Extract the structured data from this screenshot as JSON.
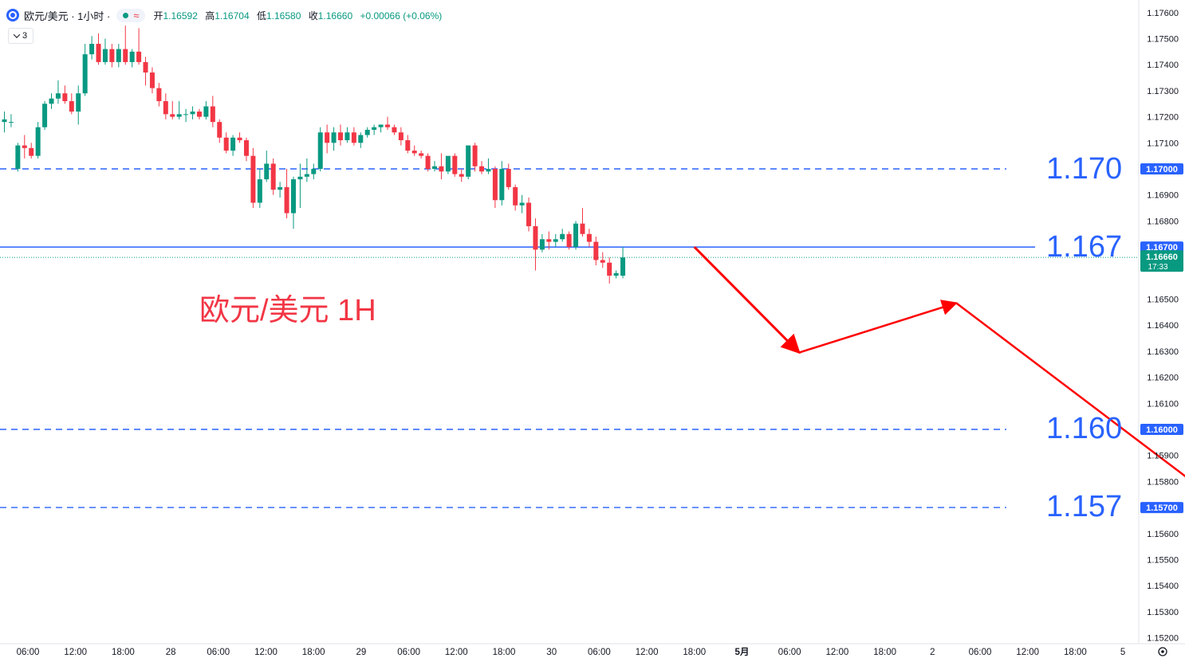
{
  "header": {
    "symbol_title": "欧元/美元 · 1小时 ·",
    "wave_symbol": "≈",
    "ohlc": [
      {
        "label": "开",
        "value": "1.16592"
      },
      {
        "label": "高",
        "value": "1.16704"
      },
      {
        "label": "低",
        "value": "1.16580"
      },
      {
        "label": "收",
        "value": "1.16660"
      },
      {
        "label": "",
        "value": "+0.00066 (+0.06%)"
      }
    ],
    "collapse_count": "3"
  },
  "colors": {
    "up": "#089981",
    "down": "#f23645",
    "level_line": "#2962ff",
    "current_line": "#2962ff",
    "price_tag": "#2962ff",
    "arrow": "#ff0000",
    "title": "#f23645"
  },
  "chart_data": {
    "type": "candlestick",
    "title": "欧元/美元 1H",
    "ylim": [
      1.152,
      1.1762
    ],
    "y_ticks": [
      "1.17600",
      "1.17500",
      "1.17400",
      "1.17300",
      "1.17200",
      "1.17100",
      "1.16900",
      "1.16800",
      "1.16500",
      "1.16400",
      "1.16300",
      "1.16200",
      "1.16100",
      "1.15900",
      "1.15800",
      "1.15600",
      "1.15500",
      "1.15400",
      "1.15300",
      "1.15200"
    ],
    "x_ticks": [
      "06:00",
      "12:00",
      "18:00",
      "28",
      "06:00",
      "12:00",
      "18:00",
      "29",
      "06:00",
      "12:00",
      "18:00",
      "30",
      "06:00",
      "12:00",
      "18:00",
      "5月",
      "06:00",
      "12:00",
      "18:00",
      "2",
      "06:00",
      "12:00",
      "18:00",
      "5"
    ],
    "levels": [
      {
        "value": 1.17,
        "label": "1.170",
        "tag": "1.17000",
        "style": "dashed"
      },
      {
        "value": 1.167,
        "label": "1.167",
        "tag": "1.16700",
        "style": "solid"
      },
      {
        "value": 1.16,
        "label": "1.160",
        "tag": "1.16000",
        "style": "dashed"
      },
      {
        "value": 1.157,
        "label": "1.157",
        "tag": "1.15700",
        "style": "dashed"
      }
    ],
    "current_price": {
      "value": 1.1666,
      "tag": "1.16660",
      "countdown": "17:33"
    },
    "candles": [
      {
        "o": 1.1718,
        "h": 1.1722,
        "l": 1.1714,
        "c": 1.1719
      },
      {
        "o": 1.1718,
        "h": 1.1721,
        "l": 1.1716,
        "c": 1.1718
      },
      {
        "o": 1.17,
        "h": 1.171,
        "l": 1.1699,
        "c": 1.1709
      },
      {
        "o": 1.1709,
        "h": 1.1713,
        "l": 1.1704,
        "c": 1.1708
      },
      {
        "o": 1.1708,
        "h": 1.171,
        "l": 1.1704,
        "c": 1.1705
      },
      {
        "o": 1.1705,
        "h": 1.1718,
        "l": 1.1704,
        "c": 1.1716
      },
      {
        "o": 1.1716,
        "h": 1.1726,
        "l": 1.1715,
        "c": 1.1725
      },
      {
        "o": 1.1725,
        "h": 1.1729,
        "l": 1.1723,
        "c": 1.1727
      },
      {
        "o": 1.1727,
        "h": 1.1734,
        "l": 1.1725,
        "c": 1.1729
      },
      {
        "o": 1.1729,
        "h": 1.1732,
        "l": 1.1725,
        "c": 1.1726
      },
      {
        "o": 1.1726,
        "h": 1.1729,
        "l": 1.1721,
        "c": 1.1722
      },
      {
        "o": 1.1722,
        "h": 1.1732,
        "l": 1.1717,
        "c": 1.1729
      },
      {
        "o": 1.1729,
        "h": 1.1748,
        "l": 1.1728,
        "c": 1.1744
      },
      {
        "o": 1.1744,
        "h": 1.1751,
        "l": 1.1742,
        "c": 1.1748
      },
      {
        "o": 1.1748,
        "h": 1.1752,
        "l": 1.174,
        "c": 1.1741
      },
      {
        "o": 1.1741,
        "h": 1.175,
        "l": 1.174,
        "c": 1.1746
      },
      {
        "o": 1.1746,
        "h": 1.1748,
        "l": 1.1739,
        "c": 1.1741
      },
      {
        "o": 1.1741,
        "h": 1.1748,
        "l": 1.1739,
        "c": 1.1746
      },
      {
        "o": 1.1746,
        "h": 1.1755,
        "l": 1.174,
        "c": 1.1741
      },
      {
        "o": 1.1741,
        "h": 1.1746,
        "l": 1.1739,
        "c": 1.1745
      },
      {
        "o": 1.1745,
        "h": 1.1754,
        "l": 1.174,
        "c": 1.1741
      },
      {
        "o": 1.1741,
        "h": 1.1743,
        "l": 1.1732,
        "c": 1.1737
      },
      {
        "o": 1.1737,
        "h": 1.1739,
        "l": 1.1729,
        "c": 1.1731
      },
      {
        "o": 1.1731,
        "h": 1.1733,
        "l": 1.1724,
        "c": 1.1726
      },
      {
        "o": 1.1726,
        "h": 1.1729,
        "l": 1.1719,
        "c": 1.1721
      },
      {
        "o": 1.1721,
        "h": 1.1726,
        "l": 1.1719,
        "c": 1.172
      },
      {
        "o": 1.172,
        "h": 1.1726,
        "l": 1.1719,
        "c": 1.1721
      },
      {
        "o": 1.1721,
        "h": 1.1723,
        "l": 1.1718,
        "c": 1.1721
      },
      {
        "o": 1.1721,
        "h": 1.1724,
        "l": 1.1719,
        "c": 1.1722
      },
      {
        "o": 1.1722,
        "h": 1.1723,
        "l": 1.1719,
        "c": 1.172
      },
      {
        "o": 1.172,
        "h": 1.1726,
        "l": 1.1719,
        "c": 1.1724
      },
      {
        "o": 1.1724,
        "h": 1.1728,
        "l": 1.1716,
        "c": 1.1718
      },
      {
        "o": 1.1718,
        "h": 1.1719,
        "l": 1.171,
        "c": 1.1712
      },
      {
        "o": 1.1712,
        "h": 1.1714,
        "l": 1.1706,
        "c": 1.1707
      },
      {
        "o": 1.1707,
        "h": 1.1713,
        "l": 1.1705,
        "c": 1.1712
      },
      {
        "o": 1.1712,
        "h": 1.1714,
        "l": 1.171,
        "c": 1.1711
      },
      {
        "o": 1.1711,
        "h": 1.1712,
        "l": 1.1703,
        "c": 1.1705
      },
      {
        "o": 1.1705,
        "h": 1.1708,
        "l": 1.1685,
        "c": 1.1687
      },
      {
        "o": 1.1687,
        "h": 1.17,
        "l": 1.1685,
        "c": 1.1696
      },
      {
        "o": 1.1696,
        "h": 1.1707,
        "l": 1.1695,
        "c": 1.1702
      },
      {
        "o": 1.1702,
        "h": 1.1704,
        "l": 1.169,
        "c": 1.1692
      },
      {
        "o": 1.1692,
        "h": 1.1695,
        "l": 1.1689,
        "c": 1.1693
      },
      {
        "o": 1.1693,
        "h": 1.17,
        "l": 1.1681,
        "c": 1.1683
      },
      {
        "o": 1.1683,
        "h": 1.1697,
        "l": 1.1677,
        "c": 1.1696
      },
      {
        "o": 1.1696,
        "h": 1.1702,
        "l": 1.1685,
        "c": 1.1697
      },
      {
        "o": 1.1697,
        "h": 1.1704,
        "l": 1.1695,
        "c": 1.1698
      },
      {
        "o": 1.1698,
        "h": 1.1702,
        "l": 1.1696,
        "c": 1.17
      },
      {
        "o": 1.17,
        "h": 1.1716,
        "l": 1.1699,
        "c": 1.1714
      },
      {
        "o": 1.1714,
        "h": 1.1717,
        "l": 1.1706,
        "c": 1.171
      },
      {
        "o": 1.171,
        "h": 1.1716,
        "l": 1.1707,
        "c": 1.1714
      },
      {
        "o": 1.1714,
        "h": 1.1717,
        "l": 1.1709,
        "c": 1.1711
      },
      {
        "o": 1.1711,
        "h": 1.1716,
        "l": 1.171,
        "c": 1.1714
      },
      {
        "o": 1.1714,
        "h": 1.1716,
        "l": 1.1709,
        "c": 1.171
      },
      {
        "o": 1.171,
        "h": 1.1714,
        "l": 1.1708,
        "c": 1.1713
      },
      {
        "o": 1.1713,
        "h": 1.1716,
        "l": 1.1712,
        "c": 1.1715
      },
      {
        "o": 1.1715,
        "h": 1.1717,
        "l": 1.1713,
        "c": 1.1716
      },
      {
        "o": 1.1716,
        "h": 1.1717,
        "l": 1.1714,
        "c": 1.1717
      },
      {
        "o": 1.1717,
        "h": 1.172,
        "l": 1.1715,
        "c": 1.1716
      },
      {
        "o": 1.1716,
        "h": 1.1717,
        "l": 1.1713,
        "c": 1.1714
      },
      {
        "o": 1.1714,
        "h": 1.1716,
        "l": 1.1709,
        "c": 1.1711
      },
      {
        "o": 1.1711,
        "h": 1.1713,
        "l": 1.1706,
        "c": 1.1707
      },
      {
        "o": 1.1707,
        "h": 1.1709,
        "l": 1.1705,
        "c": 1.1706
      },
      {
        "o": 1.1706,
        "h": 1.1707,
        "l": 1.1704,
        "c": 1.1705
      },
      {
        "o": 1.1705,
        "h": 1.1706,
        "l": 1.1699,
        "c": 1.17
      },
      {
        "o": 1.17,
        "h": 1.1703,
        "l": 1.1699,
        "c": 1.1701
      },
      {
        "o": 1.1701,
        "h": 1.1706,
        "l": 1.1696,
        "c": 1.1699
      },
      {
        "o": 1.1699,
        "h": 1.1704,
        "l": 1.1698,
        "c": 1.1705
      },
      {
        "o": 1.1705,
        "h": 1.1706,
        "l": 1.1697,
        "c": 1.1698
      },
      {
        "o": 1.1698,
        "h": 1.17,
        "l": 1.1695,
        "c": 1.1697
      },
      {
        "o": 1.1697,
        "h": 1.1709,
        "l": 1.1696,
        "c": 1.1709
      },
      {
        "o": 1.1709,
        "h": 1.171,
        "l": 1.1699,
        "c": 1.1701
      },
      {
        "o": 1.1701,
        "h": 1.1703,
        "l": 1.1698,
        "c": 1.1699
      },
      {
        "o": 1.1699,
        "h": 1.1704,
        "l": 1.1698,
        "c": 1.17
      },
      {
        "o": 1.17,
        "h": 1.1701,
        "l": 1.1685,
        "c": 1.1688
      },
      {
        "o": 1.1688,
        "h": 1.1703,
        "l": 1.1686,
        "c": 1.17
      },
      {
        "o": 1.17,
        "h": 1.1702,
        "l": 1.1692,
        "c": 1.1693
      },
      {
        "o": 1.1693,
        "h": 1.1694,
        "l": 1.1684,
        "c": 1.1686
      },
      {
        "o": 1.1686,
        "h": 1.169,
        "l": 1.1683,
        "c": 1.1687
      },
      {
        "o": 1.1687,
        "h": 1.1689,
        "l": 1.1676,
        "c": 1.1678
      },
      {
        "o": 1.1678,
        "h": 1.1681,
        "l": 1.1661,
        "c": 1.1669
      },
      {
        "o": 1.1669,
        "h": 1.1675,
        "l": 1.1668,
        "c": 1.1673
      },
      {
        "o": 1.1673,
        "h": 1.1676,
        "l": 1.1669,
        "c": 1.1672
      },
      {
        "o": 1.1672,
        "h": 1.1675,
        "l": 1.167,
        "c": 1.1673
      },
      {
        "o": 1.1673,
        "h": 1.1677,
        "l": 1.1672,
        "c": 1.1675
      },
      {
        "o": 1.1675,
        "h": 1.1676,
        "l": 1.1669,
        "c": 1.167
      },
      {
        "o": 1.167,
        "h": 1.168,
        "l": 1.1669,
        "c": 1.1679
      },
      {
        "o": 1.1679,
        "h": 1.1685,
        "l": 1.1674,
        "c": 1.1675
      },
      {
        "o": 1.1675,
        "h": 1.1677,
        "l": 1.167,
        "c": 1.1672
      },
      {
        "o": 1.1672,
        "h": 1.1674,
        "l": 1.1663,
        "c": 1.1665
      },
      {
        "o": 1.1665,
        "h": 1.1668,
        "l": 1.1662,
        "c": 1.1664
      },
      {
        "o": 1.1664,
        "h": 1.1666,
        "l": 1.1656,
        "c": 1.1659
      },
      {
        "o": 1.1659,
        "h": 1.1661,
        "l": 1.1658,
        "c": 1.166
      },
      {
        "o": 1.1659,
        "h": 1.167,
        "l": 1.1658,
        "c": 1.1666
      }
    ],
    "projection_path": [
      [
        14,
        1.167
      ],
      [
        16.2,
        1.16295
      ],
      [
        19.5,
        1.16485
      ],
      [
        25.0,
        1.15725
      ]
    ]
  }
}
